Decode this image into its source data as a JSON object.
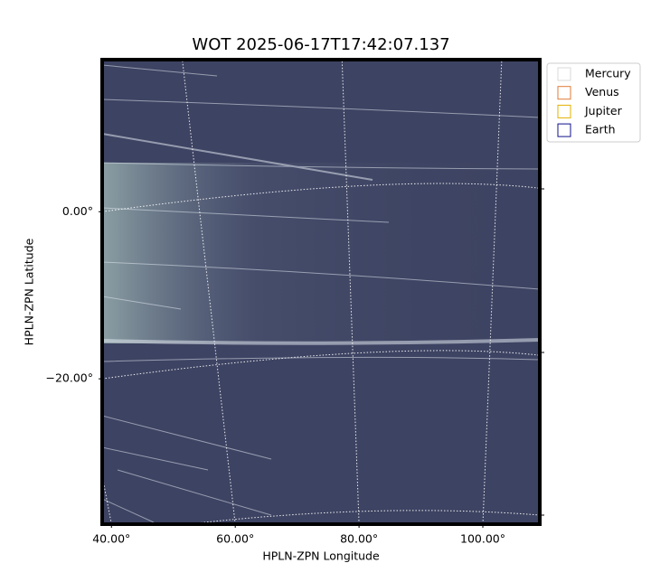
{
  "chart_data": {
    "type": "image",
    "title": "WOT 2025-06-17T17:42:07.137",
    "x_label": "HPLN-ZPN Longitude",
    "y_label": "HPLN-ZPN Latitude",
    "xlim": [
      38.5,
      109.2
    ],
    "ylim": [
      -37.4,
      18.2
    ],
    "xticks": [
      {
        "value": 40,
        "label": "40.00°"
      },
      {
        "value": 60,
        "label": "60.00°"
      },
      {
        "value": 80,
        "label": "80.00°"
      },
      {
        "value": 100,
        "label": "100.00°"
      }
    ],
    "yticks": [
      {
        "value": 0,
        "label": "0.00°"
      },
      {
        "value": -20,
        "label": "−20.00°"
      }
    ],
    "grid": true,
    "legend_position": "outside-right",
    "series": [
      {
        "name": "Mercury",
        "color": "#d9d9d9"
      },
      {
        "name": "Venus",
        "color": "#e07b39"
      },
      {
        "name": "Jupiter",
        "color": "#e3b100"
      },
      {
        "name": "Earth",
        "color": "#10108a"
      }
    ]
  }
}
